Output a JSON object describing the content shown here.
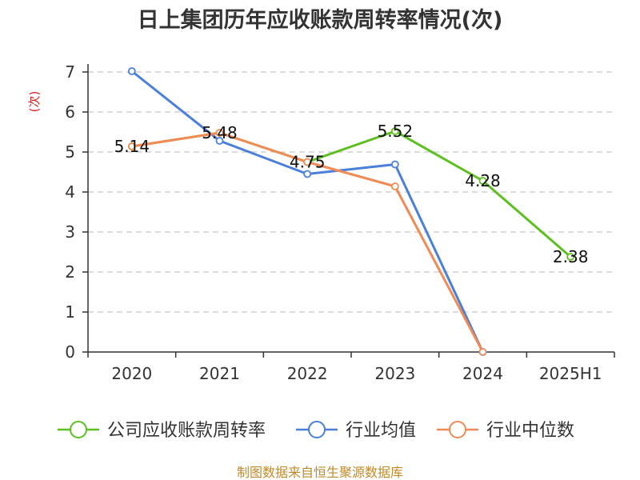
{
  "chart_data": {
    "type": "line",
    "title": "日上集团历年应收账款周转率情况(次)",
    "ylabel": "(次)",
    "xlabel": "",
    "categories": [
      "2020",
      "2021",
      "2022",
      "2023",
      "2024",
      "2025H1"
    ],
    "ylim": [
      0,
      7
    ],
    "yticks": [
      0,
      1,
      2,
      3,
      4,
      5,
      6,
      7
    ],
    "grid": true,
    "legend_position": "bottom",
    "series": [
      {
        "name": "公司应收账款周转率",
        "color": "#5cc01f",
        "values": [
          5.14,
          5.48,
          4.75,
          5.52,
          4.28,
          2.38
        ],
        "labels": [
          "5.14",
          "5.48",
          "4.75",
          "5.52",
          "4.28",
          "2.38"
        ]
      },
      {
        "name": "行业均值",
        "color": "#4a7fdc",
        "values": [
          7.02,
          5.28,
          4.45,
          4.69,
          0.0,
          null
        ],
        "labels": []
      },
      {
        "name": "行业中位数",
        "color": "#f28a55",
        "values": [
          5.14,
          5.48,
          4.75,
          4.14,
          0.0,
          null
        ],
        "labels": []
      }
    ],
    "source_note": "制图数据来自恒生聚源数据库"
  }
}
